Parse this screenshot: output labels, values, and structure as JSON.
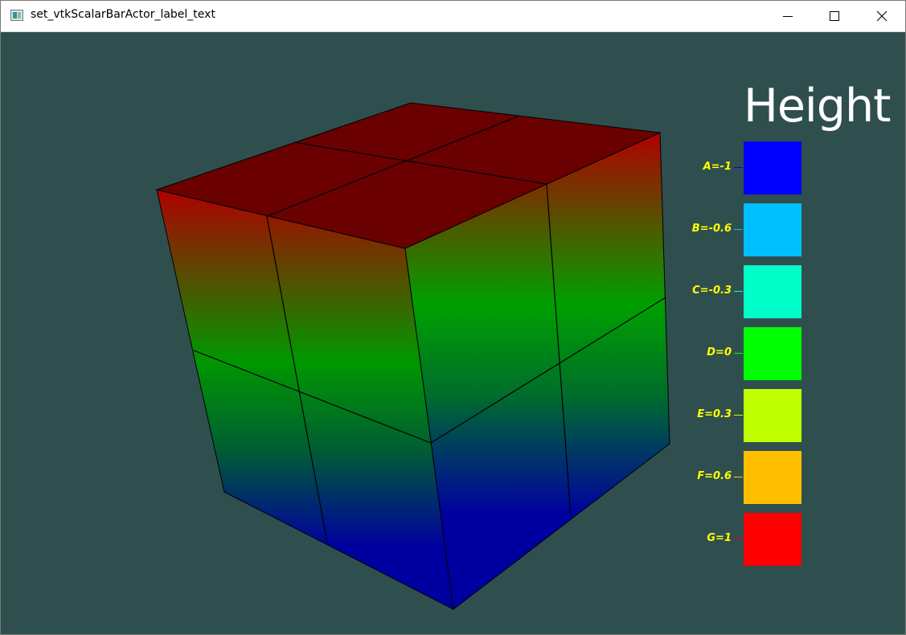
{
  "window": {
    "title": "set_vtkScalarBarActor_label_text",
    "controls": [
      "minimize-icon",
      "maximize-icon",
      "close-icon"
    ]
  },
  "viewport": {
    "background": "#2f4f4f",
    "scene": "colored cube with 2x2 subdivided faces, colored by height from blue (bottom) through green to red (top)"
  },
  "scalar_bar": {
    "title": "Height",
    "label_color": "#ffff00",
    "entries": [
      {
        "label": "A=-1",
        "color": "#0000ff"
      },
      {
        "label": "B=-0.6",
        "color": "#00bfff"
      },
      {
        "label": "C=-0.3",
        "color": "#00ffc8"
      },
      {
        "label": "D=0",
        "color": "#00ff00"
      },
      {
        "label": "E=0.3",
        "color": "#bfff00"
      },
      {
        "label": "F=0.6",
        "color": "#ffbf00"
      },
      {
        "label": "G=1",
        "color": "#ff0000"
      }
    ]
  }
}
